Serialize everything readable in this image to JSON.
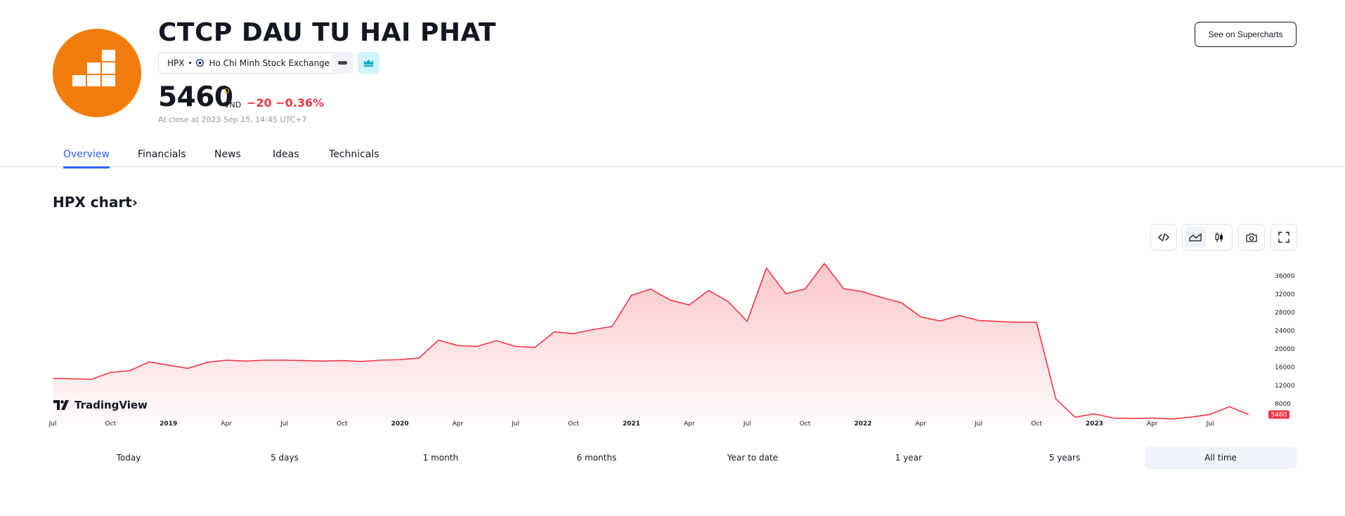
{
  "header": {
    "company_name": "CTCP DAU TU HAI PHAT",
    "symbol": "HPX",
    "exchange": "Ho Chi Minh Stock Exchange",
    "price": "5460",
    "price_flag": "D",
    "currency": "VND",
    "change": "−20",
    "change_percent": "−0.36%",
    "close_note": "At close at 2023 Sep 15, 14:45 UTC+7",
    "supercharts_label": "See on Supercharts",
    "logo_color": "#f27d0c"
  },
  "tabs": [
    {
      "label": "Overview",
      "active": true
    },
    {
      "label": "Financials",
      "active": false
    },
    {
      "label": "News",
      "active": false
    },
    {
      "label": "Ideas",
      "active": false
    },
    {
      "label": "Technicals",
      "active": false
    }
  ],
  "chart_section": {
    "title": "HPX chart",
    "chevron": "›",
    "tools": [
      "embed-icon",
      "area-chart-icon",
      "candles-icon",
      "camera-icon",
      "fullscreen-icon"
    ],
    "watermark": "TradingView"
  },
  "chart_data": {
    "type": "area",
    "line_color": "#f23645",
    "fill_color": "#fbc7cc",
    "y_ticks": [
      8000,
      12000,
      16000,
      20000,
      24000,
      28000,
      32000,
      36000
    ],
    "ylim": [
      4000,
      38500
    ],
    "current_value_label": "5460",
    "x_tick_labels": [
      "Jul",
      "Oct",
      "2019",
      "Apr",
      "Jul",
      "Oct",
      "2020",
      "Apr",
      "Jul",
      "Oct",
      "2021",
      "Apr",
      "Jul",
      "Oct",
      "2022",
      "Apr",
      "Jul",
      "Oct",
      "2023",
      "Apr",
      "Jul"
    ],
    "series": [
      {
        "x": [
          "2018-07",
          "2018-08",
          "2018-09",
          "2018-10",
          "2018-11",
          "2018-12",
          "2019-01",
          "2019-02",
          "2019-03",
          "2019-04",
          "2019-05",
          "2019-06",
          "2019-07",
          "2019-08",
          "2019-09",
          "2019-10",
          "2019-11",
          "2019-12",
          "2020-01",
          "2020-02",
          "2020-03",
          "2020-04",
          "2020-05",
          "2020-06",
          "2020-07",
          "2020-08",
          "2020-09",
          "2020-10",
          "2020-11",
          "2020-12",
          "2021-01",
          "2021-02",
          "2021-03",
          "2021-04",
          "2021-05",
          "2021-06",
          "2021-07",
          "2021-08",
          "2021-09",
          "2021-10",
          "2021-11",
          "2021-12",
          "2022-01",
          "2022-02",
          "2022-03",
          "2022-04",
          "2022-05",
          "2022-06",
          "2022-07",
          "2022-08",
          "2022-09",
          "2022-10",
          "2022-11",
          "2022-12",
          "2023-01",
          "2023-02",
          "2023-03",
          "2023-04",
          "2023-05",
          "2023-06",
          "2023-07",
          "2023-08",
          "2023-09"
        ],
        "y": [
          13400,
          13300,
          13200,
          14700,
          15100,
          17000,
          16300,
          15600,
          16900,
          17400,
          17200,
          17400,
          17400,
          17300,
          17200,
          17300,
          17100,
          17400,
          17500,
          17900,
          21800,
          20600,
          20400,
          21700,
          20400,
          20200,
          23600,
          23200,
          24100,
          24800,
          31600,
          33000,
          30600,
          29500,
          32700,
          30300,
          25900,
          37600,
          32000,
          33000,
          38600,
          33100,
          32400,
          31100,
          30000,
          26900,
          26000,
          27200,
          26100,
          25900,
          25700,
          25700,
          8900,
          4900,
          5600,
          4700,
          4600,
          4700,
          4500,
          4900,
          5500,
          7200,
          5460
        ]
      }
    ]
  },
  "ranges": [
    {
      "label": "Today",
      "active": false
    },
    {
      "label": "5 days",
      "active": false
    },
    {
      "label": "1 month",
      "active": false
    },
    {
      "label": "6 months",
      "active": false
    },
    {
      "label": "Year to date",
      "active": false
    },
    {
      "label": "1 year",
      "active": false
    },
    {
      "label": "5 years",
      "active": false
    },
    {
      "label": "All time",
      "active": true
    }
  ]
}
